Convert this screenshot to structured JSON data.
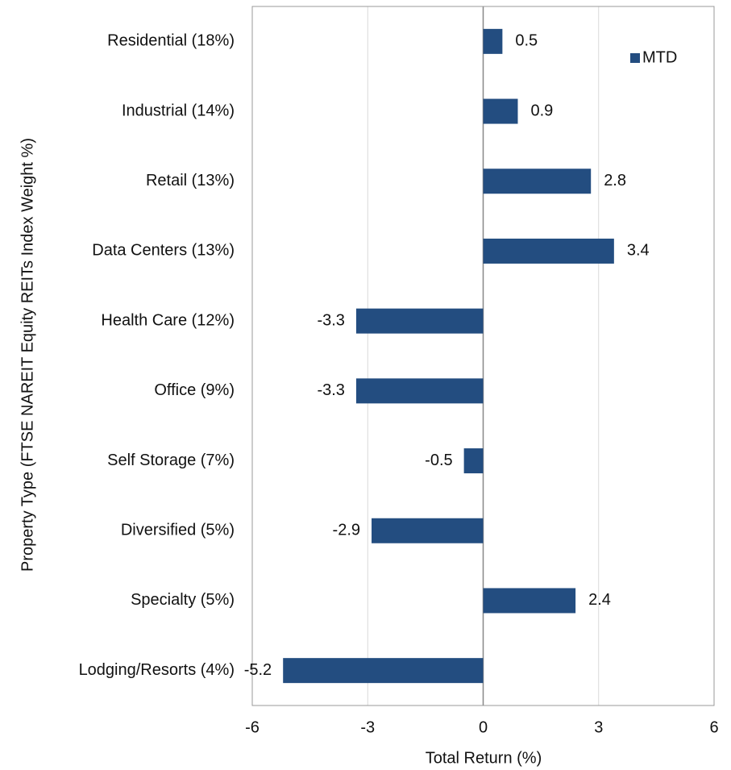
{
  "chart_data": {
    "type": "bar",
    "orientation": "horizontal",
    "x_label": "Total Return (%)",
    "y_label": "Property Type (FTSE NAREIT Equity REITs Index Weight %)",
    "categories": [
      "Residential (18%)",
      "Industrial (14%)",
      "Retail (13%)",
      "Data Centers (13%)",
      "Health Care (12%)",
      "Office (9%)",
      "Self Storage (7%)",
      "Diversified (5%)",
      "Specialty (5%)",
      "Lodging/Resorts (4%)"
    ],
    "series": [
      {
        "name": "MTD",
        "color": "#234d80",
        "values": [
          0.5,
          0.9,
          2.8,
          3.4,
          -3.3,
          -3.3,
          -0.5,
          -2.9,
          2.4,
          -5.2
        ]
      }
    ],
    "xlim": [
      -6,
      6
    ],
    "xticks": [
      -6,
      -3,
      0,
      3,
      6
    ],
    "grid": true,
    "legend": "upper right"
  }
}
